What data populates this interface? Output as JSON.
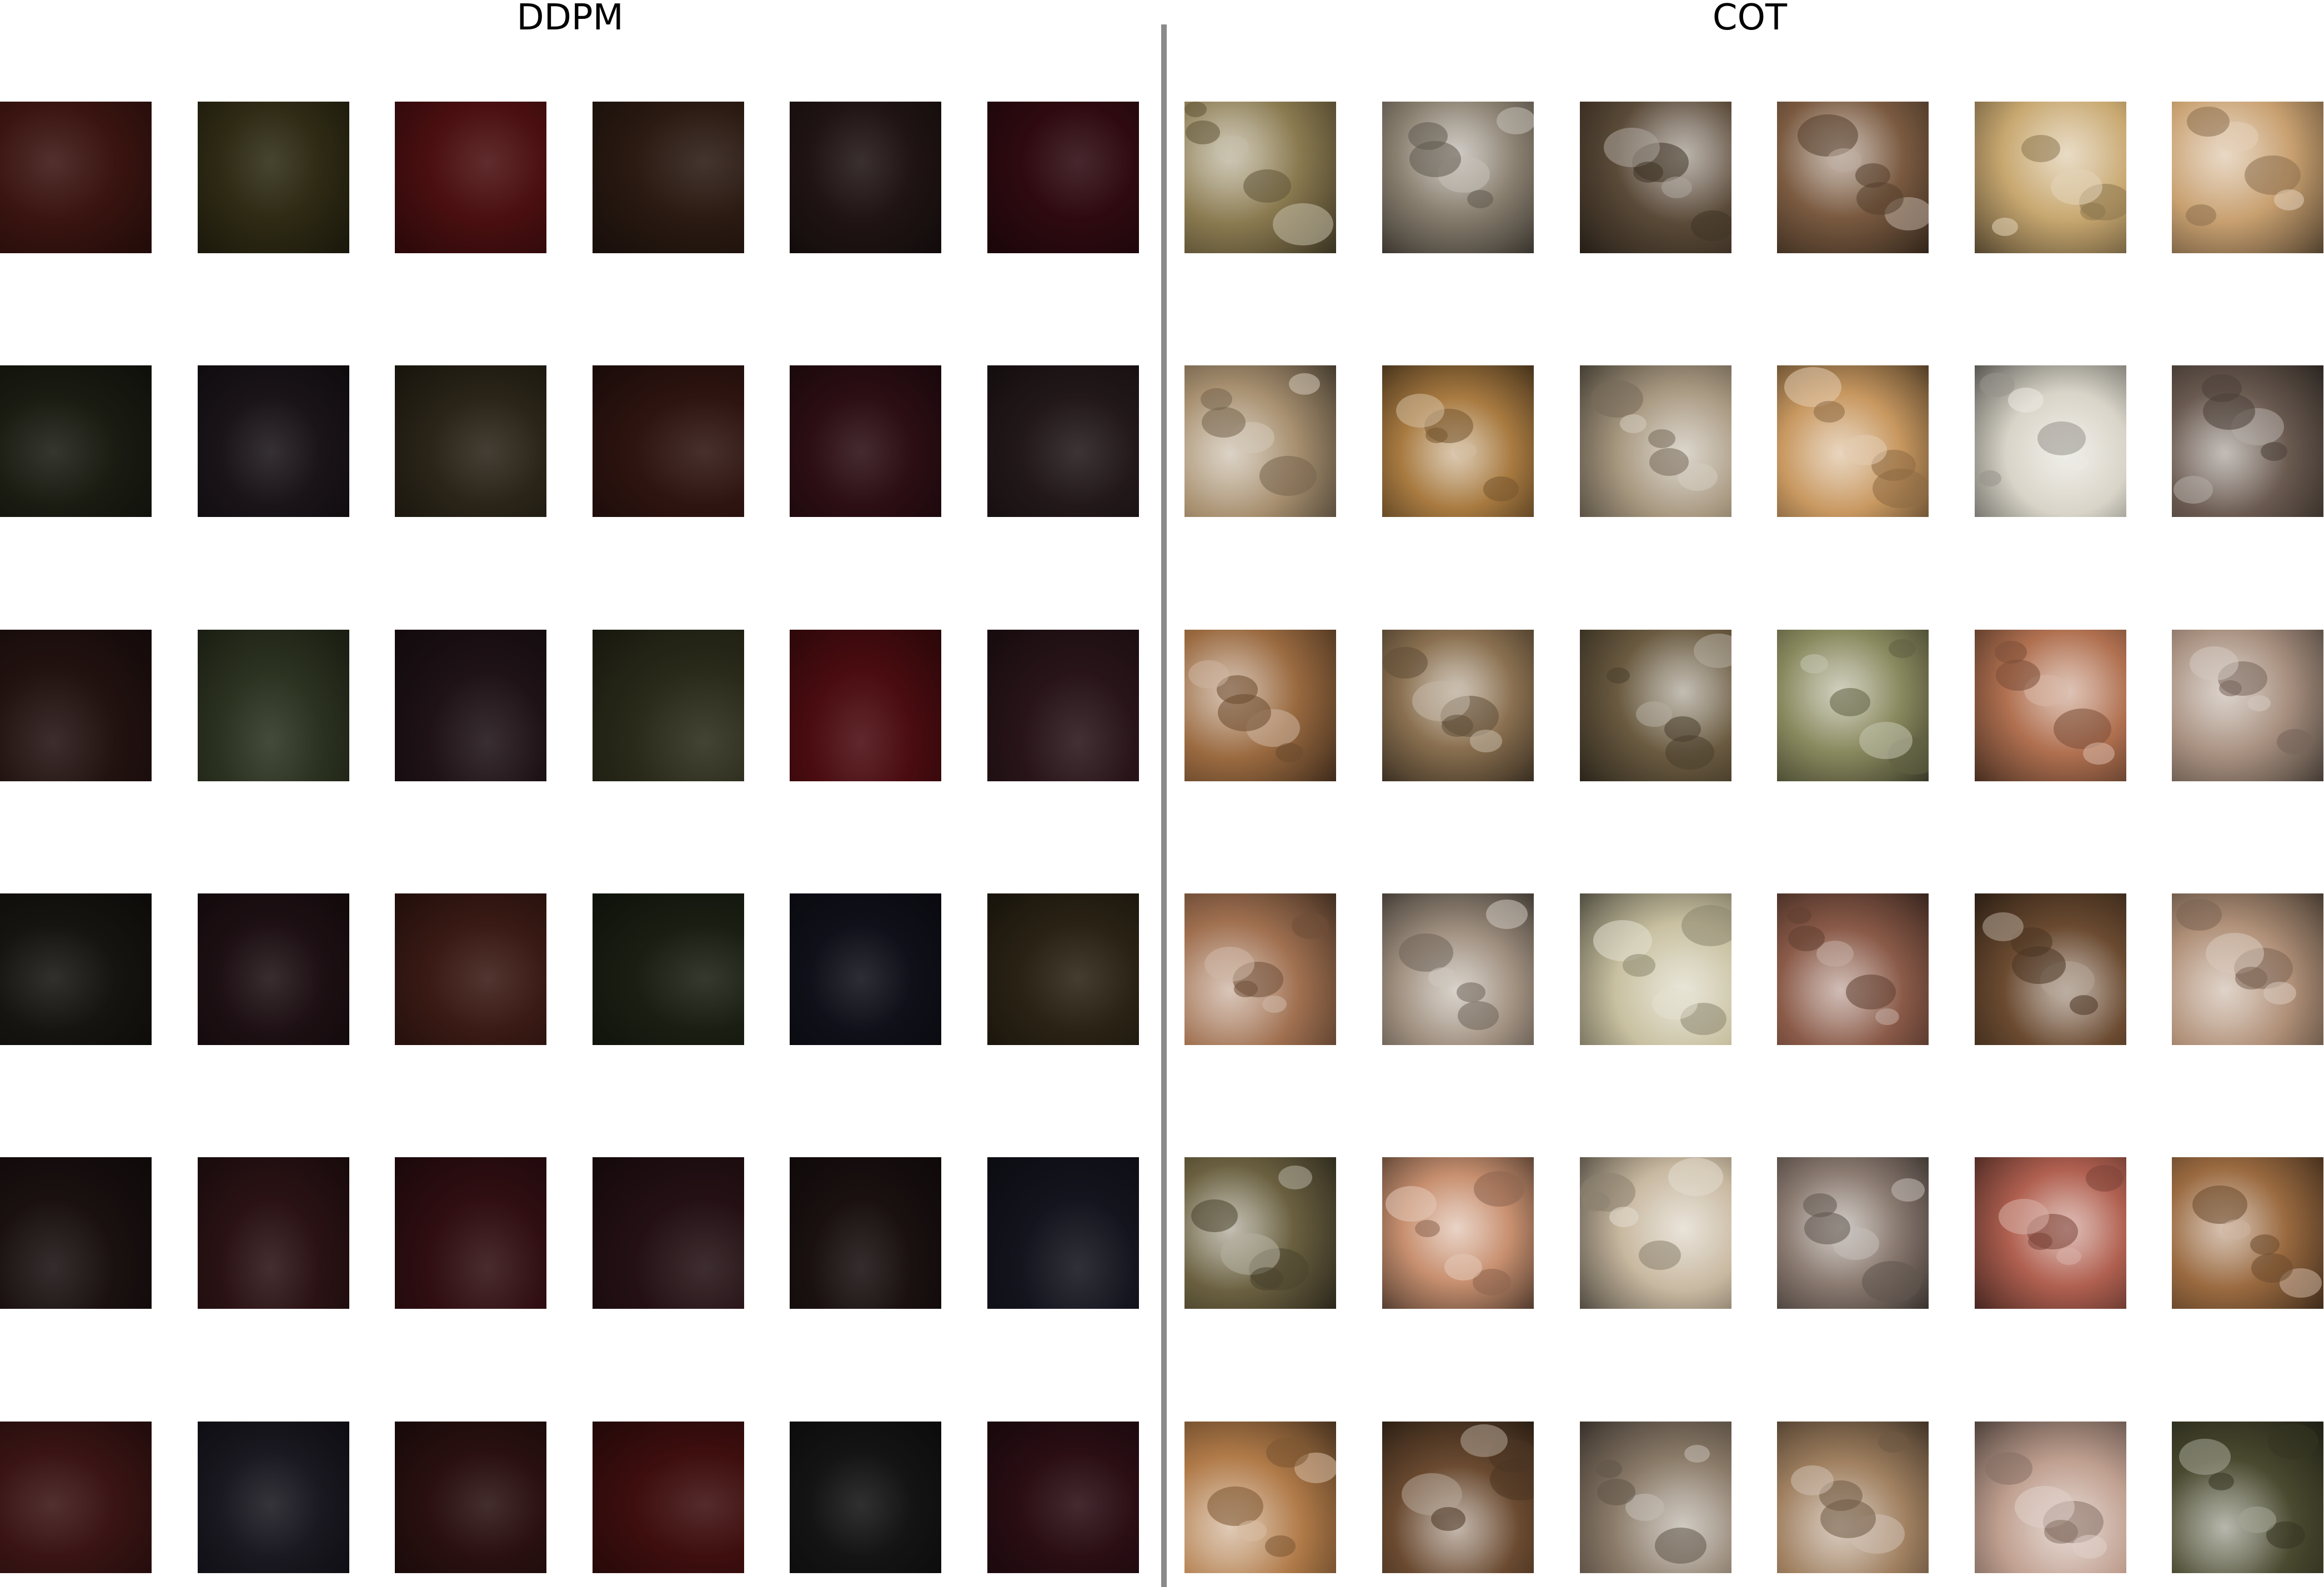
{
  "panels": [
    {
      "title": "DDPM",
      "tiles": [
        [
          "#3a1410",
          "#2e2a14",
          "#4a0f10",
          "#2a1a12",
          "#201414",
          "#2e0a10"
        ],
        [
          "#1a1c12",
          "#1a1418",
          "#2a2418",
          "#2e1410",
          "#2c0e14",
          "#22181a"
        ],
        [
          "#221210",
          "#2c3220",
          "#1e1216",
          "#2a2a1a",
          "#4a0c10",
          "#281418"
        ],
        [
          "#161410",
          "#1e1014",
          "#3a1a14",
          "#1a1e12",
          "#10101a",
          "#2a2214"
        ],
        [
          "#1a1010",
          "#2a1214",
          "#300e12",
          "#241014",
          "#1a1010",
          "#14141e"
        ],
        [
          "#3a1414",
          "#1a1820",
          "#2a1010",
          "#3e0e0e",
          "#141414",
          "#2a0e14"
        ]
      ]
    },
    {
      "title": "COT",
      "tiles": [
        [
          "#8a7a50",
          "#8a8070",
          "#5a4a38",
          "#7a5a40",
          "#c8a870",
          "#c8a070"
        ],
        [
          "#a89070",
          "#a87a40",
          "#a89880",
          "#c89860",
          "#d8d4c8",
          "#6a5a50"
        ],
        [
          "#9a6a40",
          "#8a7050",
          "#6a5a40",
          "#8a8a60",
          "#b07050",
          "#a89080"
        ],
        [
          "#a07050",
          "#a09080",
          "#c8c0a0",
          "#8a5a48",
          "#6a4a30",
          "#b09078"
        ],
        [
          "#6a6040",
          "#c89070",
          "#c8b8a0",
          "#8a7a70",
          "#b06050",
          "#9a6a40"
        ],
        [
          "#b07a48",
          "#6a4a30",
          "#8a7a68",
          "#a08060",
          "#c0a090",
          "#4a4a30"
        ]
      ]
    }
  ],
  "colors": {
    "divider": "#8a8a8a",
    "background": "#ffffff",
    "title_text": "#000000"
  }
}
